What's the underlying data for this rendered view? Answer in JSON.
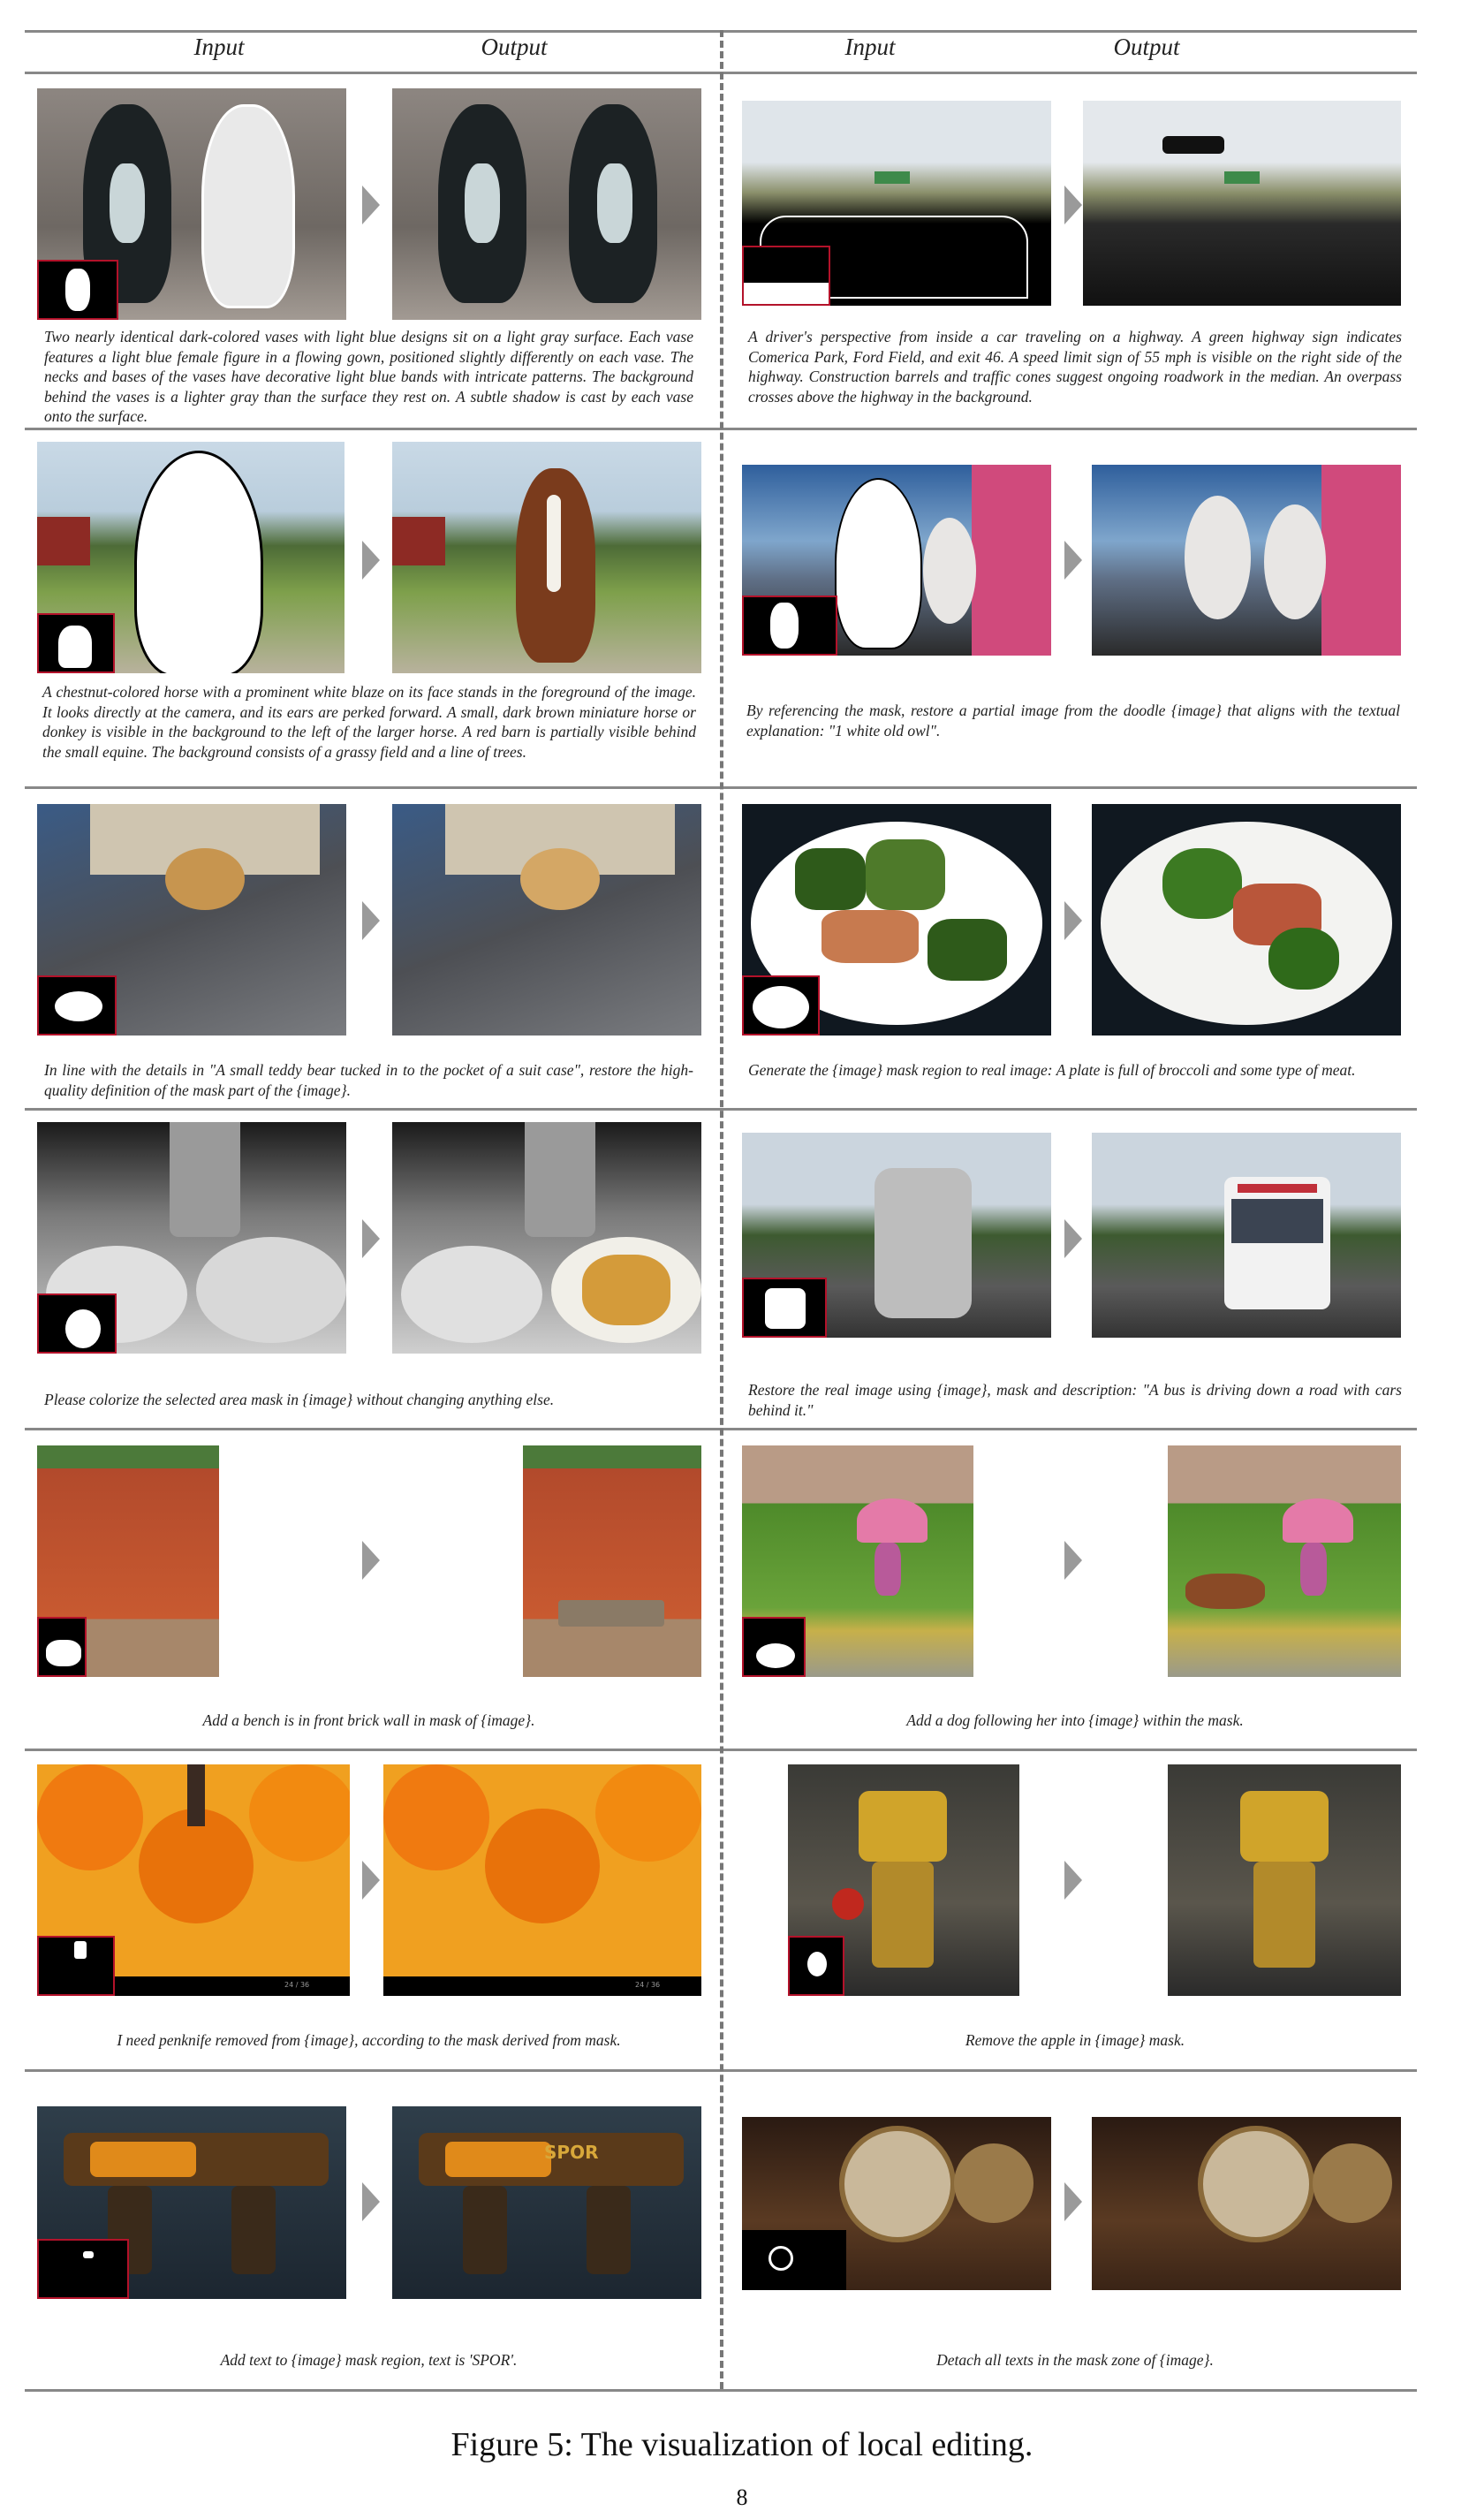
{
  "headers": {
    "left_input": "Input",
    "left_output": "Output",
    "right_input": "Input",
    "right_output": "Output"
  },
  "rows": [
    {
      "left": {
        "caption": "Two nearly identical dark-colored vases with light blue designs sit on a light gray surface. Each vase features a light blue female figure in a flowing gown, positioned slightly differently on each vase. The necks and bases of the vases have decorative light blue bands with intricate patterns. The background behind the vases is a lighter gray than the surface they rest on. A subtle shadow is cast by each vase onto the surface."
      },
      "right": {
        "caption": "A driver's perspective from inside a car traveling on a highway. A green highway sign indicates Comerica Park, Ford Field, and exit 46. A speed limit sign of 55 mph is visible on the right side of the highway. Construction barrels and traffic cones suggest ongoing roadwork in the median. An overpass crosses above the highway in the background."
      }
    },
    {
      "left": {
        "caption": "A chestnut-colored horse with a prominent white blaze on its face stands in the foreground of the image. It looks directly at the camera, and its ears are perked forward. A small, dark brown miniature horse or donkey is visible in the background to the left of the larger horse. A red barn is partially visible behind the small equine. The background consists of a grassy field and a line of trees."
      },
      "right": {
        "caption": "By referencing the mask, restore a partial image from the doodle {image} that aligns with the textual explanation: \"1 white old owl\"."
      }
    },
    {
      "left": {
        "caption": "In line with the details in \"A small teddy bear tucked in to the pocket of a suit case\", restore the high-quality definition of the mask part of the {image}."
      },
      "right": {
        "caption": "Generate the {image} mask region to real image: A plate is full of broccoli and some type of meat."
      }
    },
    {
      "left": {
        "caption": "Please colorize the selected area mask in {image} without changing anything else."
      },
      "right": {
        "caption": "Restore the real image using {image}, mask and description: \"A bus is driving down a road with cars behind it.\""
      }
    },
    {
      "left": {
        "caption": "Add a bench is in front brick wall in mask of {image}."
      },
      "right": {
        "caption": "Add a dog following her into {image} within the mask."
      }
    },
    {
      "left": {
        "caption": "I need penknife removed from {image}, according to the mask derived from mask.",
        "counter": "24 / 36"
      },
      "right": {
        "caption": "Remove the apple in {image} mask."
      }
    },
    {
      "left": {
        "caption": "Add text to {image} mask region, text is 'SPOR'.",
        "output_text": "SPOR"
      },
      "right": {
        "caption": "Detach all texts in the mask zone of {image}."
      }
    }
  ],
  "figure_caption": "Figure 5: The visualization of local editing.",
  "page_number": "8",
  "colors": {
    "mask_border": "#b3122a",
    "rule": "#888888",
    "arrow": "#9a9a9a"
  }
}
